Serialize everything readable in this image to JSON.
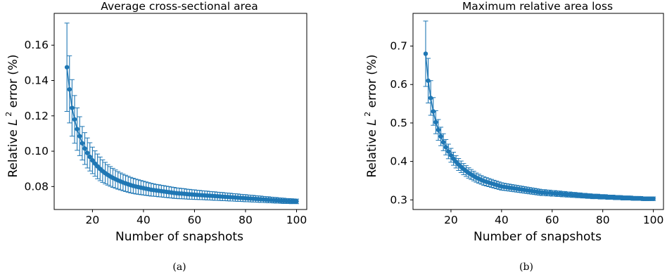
{
  "chart_data": [
    {
      "type": "scatter",
      "title": "Average cross-sectional area",
      "xlabel": "Number of snapshots",
      "ylabel": "Relative L 2 error (%)",
      "xlim": [
        5,
        104
      ],
      "ylim": [
        0.067,
        0.178
      ],
      "xticks": [
        20,
        40,
        60,
        80,
        100
      ],
      "yticks": [
        0.08,
        0.1,
        0.12,
        0.14,
        0.16
      ],
      "ytick_labels": [
        "0.08",
        "0.10",
        "0.12",
        "0.14",
        "0.16"
      ],
      "error_bars": true,
      "color": "#1f77b4",
      "series": [
        {
          "x_start": 10,
          "x_end": 100,
          "mean": [
            0.1475,
            0.135,
            0.1245,
            0.118,
            0.1125,
            0.1085,
            0.1045,
            0.1015,
            0.099,
            0.0968,
            0.0948,
            0.093,
            0.0914,
            0.09,
            0.0887,
            0.0876,
            0.0866,
            0.0857,
            0.0849,
            0.0842,
            0.0835,
            0.0829,
            0.0823,
            0.0818,
            0.0813,
            0.0808,
            0.0804,
            0.08,
            0.0797,
            0.0794,
            0.0791,
            0.0788,
            0.0785,
            0.0782,
            0.078,
            0.0778,
            0.0776,
            0.0774,
            0.0772,
            0.077,
            0.0768,
            0.0766,
            0.0764,
            0.0762,
            0.0761,
            0.076,
            0.0759,
            0.0757,
            0.0756,
            0.0755,
            0.0754,
            0.0753,
            0.0752,
            0.0751,
            0.075,
            0.0749,
            0.0748,
            0.0747,
            0.0746,
            0.0745,
            0.0744,
            0.0743,
            0.0742,
            0.0741,
            0.074,
            0.0739,
            0.0738,
            0.0737,
            0.0736,
            0.0735,
            0.0734,
            0.0733,
            0.0732,
            0.0731,
            0.073,
            0.0729,
            0.0728,
            0.0727,
            0.0726,
            0.0725,
            0.0724,
            0.0723,
            0.0722,
            0.0721,
            0.072,
            0.0719,
            0.0718,
            0.0718,
            0.0717,
            0.0717,
            0.0716
          ],
          "err": [
            0.025,
            0.019,
            0.016,
            0.0135,
            0.012,
            0.011,
            0.0095,
            0.009,
            0.0085,
            0.008,
            0.0075,
            0.0072,
            0.007,
            0.0067,
            0.0064,
            0.0061,
            0.0058,
            0.0056,
            0.0054,
            0.0052,
            0.005,
            0.0048,
            0.0047,
            0.0046,
            0.0045,
            0.0044,
            0.0043,
            0.0042,
            0.0041,
            0.004,
            0.0039,
            0.0038,
            0.0037,
            0.0036,
            0.0035,
            0.0034,
            0.0034,
            0.0033,
            0.0033,
            0.0032,
            0.0032,
            0.0031,
            0.0031,
            0.003,
            0.003,
            0.0029,
            0.0029,
            0.0028,
            0.0028,
            0.0027,
            0.0027,
            0.0026,
            0.0026,
            0.0025,
            0.0025,
            0.0025,
            0.0024,
            0.0024,
            0.0024,
            0.0023,
            0.0023,
            0.0023,
            0.0022,
            0.0022,
            0.0022,
            0.0021,
            0.0021,
            0.0021,
            0.002,
            0.002,
            0.002,
            0.0019,
            0.0019,
            0.0019,
            0.0018,
            0.0018,
            0.0018,
            0.0017,
            0.0017,
            0.0017,
            0.0016,
            0.0016,
            0.0016,
            0.0015,
            0.0015,
            0.0015,
            0.0014,
            0.0014,
            0.0014,
            0.0013,
            0.0013
          ]
        }
      ]
    },
    {
      "type": "scatter",
      "title": "Maximum relative area loss",
      "xlabel": "Number of snapshots",
      "ylabel": "Relative L 2 error (%)",
      "xlim": [
        5,
        104
      ],
      "ylim": [
        0.275,
        0.785
      ],
      "xticks": [
        20,
        40,
        60,
        80,
        100
      ],
      "yticks": [
        0.3,
        0.4,
        0.5,
        0.6,
        0.7
      ],
      "ytick_labels": [
        "0.3",
        "0.4",
        "0.5",
        "0.6",
        "0.7"
      ],
      "error_bars": true,
      "color": "#1f77b4",
      "series": [
        {
          "x_start": 10,
          "x_end": 100,
          "mean": [
            0.68,
            0.61,
            0.565,
            0.53,
            0.502,
            0.482,
            0.465,
            0.45,
            0.437,
            0.426,
            0.416,
            0.407,
            0.399,
            0.392,
            0.386,
            0.38,
            0.375,
            0.37,
            0.366,
            0.362,
            0.358,
            0.355,
            0.352,
            0.349,
            0.347,
            0.345,
            0.343,
            0.341,
            0.339,
            0.337,
            0.335,
            0.334,
            0.333,
            0.332,
            0.331,
            0.33,
            0.329,
            0.328,
            0.327,
            0.326,
            0.325,
            0.324,
            0.323,
            0.322,
            0.321,
            0.32,
            0.319,
            0.319,
            0.318,
            0.318,
            0.317,
            0.317,
            0.316,
            0.316,
            0.315,
            0.315,
            0.314,
            0.314,
            0.313,
            0.313,
            0.312,
            0.312,
            0.311,
            0.311,
            0.31,
            0.31,
            0.309,
            0.309,
            0.309,
            0.308,
            0.308,
            0.308,
            0.307,
            0.307,
            0.307,
            0.306,
            0.306,
            0.306,
            0.305,
            0.305,
            0.305,
            0.305,
            0.304,
            0.304,
            0.304,
            0.304,
            0.303,
            0.303,
            0.303,
            0.303,
            0.303
          ],
          "err": [
            0.085,
            0.058,
            0.045,
            0.036,
            0.03,
            0.027,
            0.024,
            0.022,
            0.02,
            0.019,
            0.018,
            0.017,
            0.016,
            0.0155,
            0.015,
            0.0145,
            0.014,
            0.0135,
            0.013,
            0.0125,
            0.012,
            0.0117,
            0.0114,
            0.0111,
            0.0108,
            0.0105,
            0.0103,
            0.0101,
            0.0099,
            0.0097,
            0.0095,
            0.0093,
            0.0091,
            0.009,
            0.0089,
            0.0088,
            0.0087,
            0.0086,
            0.0085,
            0.0084,
            0.0083,
            0.0082,
            0.0081,
            0.008,
            0.0079,
            0.0078,
            0.0077,
            0.0076,
            0.0075,
            0.0074,
            0.0073,
            0.0072,
            0.0071,
            0.007,
            0.0069,
            0.0068,
            0.0067,
            0.0066,
            0.0065,
            0.0064,
            0.0063,
            0.0062,
            0.0061,
            0.006,
            0.006,
            0.0059,
            0.0059,
            0.0058,
            0.0058,
            0.0057,
            0.0057,
            0.0056,
            0.0056,
            0.0055,
            0.0055,
            0.0054,
            0.0054,
            0.0053,
            0.0053,
            0.0052,
            0.0052,
            0.0051,
            0.0051,
            0.005,
            0.005,
            0.0049,
            0.0049,
            0.0048,
            0.0048,
            0.0047,
            0.0047
          ]
        }
      ]
    }
  ],
  "captions": [
    "(a)",
    "(b)"
  ]
}
